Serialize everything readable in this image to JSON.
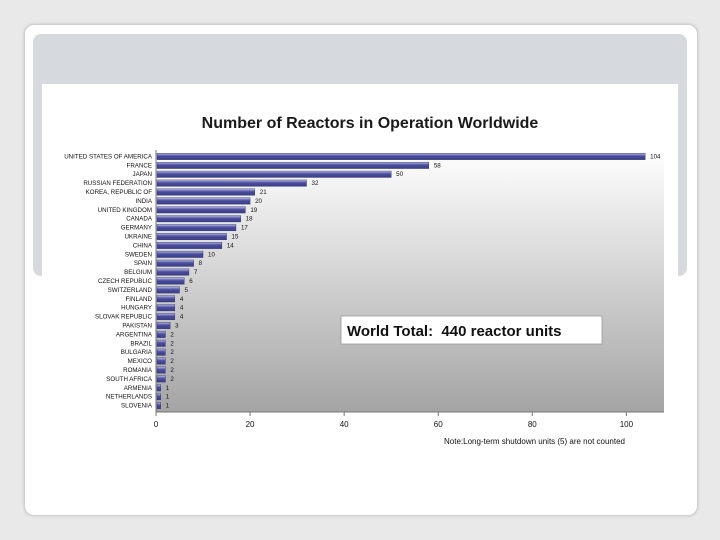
{
  "chart_data": {
    "type": "bar",
    "orientation": "horizontal",
    "title": "Number of Reactors in Operation Worldwide",
    "categories": [
      "UNITED STATES OF AMERICA",
      "FRANCE",
      "JAPAN",
      "RUSSIAN FEDERATION",
      "KOREA, REPUBLIC OF",
      "INDIA",
      "UNITED KINGDOM",
      "CANADA",
      "GERMANY",
      "UKRAINE",
      "CHINA",
      "SWEDEN",
      "SPAIN",
      "BELGIUM",
      "CZECH REPUBLIC",
      "SWITZERLAND",
      "FINLAND",
      "HUNGARY",
      "SLOVAK REPUBLIC",
      "PAKISTAN",
      "ARGENTINA",
      "BRAZIL",
      "BULGARIA",
      "MEXICO",
      "ROMANIA",
      "SOUTH AFRICA",
      "ARMENIA",
      "NETHERLANDS",
      "SLOVENIA"
    ],
    "values": [
      104,
      58,
      50,
      32,
      21,
      20,
      19,
      18,
      17,
      15,
      14,
      10,
      8,
      7,
      6,
      5,
      4,
      4,
      4,
      3,
      2,
      2,
      2,
      2,
      2,
      2,
      1,
      1,
      1
    ],
    "x_ticks": [
      0,
      20,
      40,
      60,
      80,
      100
    ],
    "xlim": [
      0,
      108
    ],
    "grid": false,
    "annotation": "World Total:  440 reactor units",
    "note": "Note:Long-term shutdown units (5) are not counted",
    "colors": {
      "bar_fill": "#4b4e9c",
      "bar_highlight": "#b9bbe6",
      "plot_top": "#ffffff",
      "plot_bottom": "#a4a4a4"
    }
  }
}
